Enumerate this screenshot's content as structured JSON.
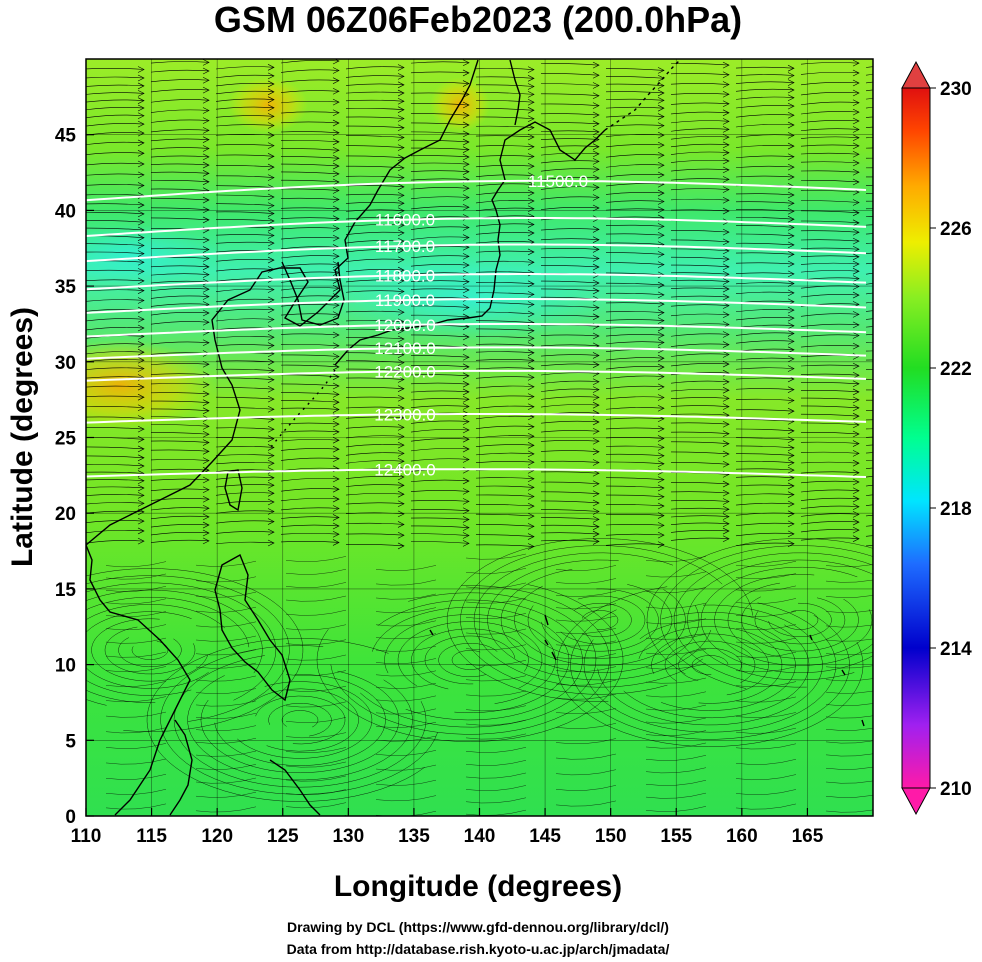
{
  "title": "GSM 06Z06Feb2023 (200.0hPa)",
  "xlabel": "Longitude (degrees)",
  "ylabel": "Latitude  (degrees)",
  "credits": [
    "Drawing by DCL (https://www.gfd-dennou.org/library/dcl/)",
    "Data from http://database.rish.kyoto-u.ac.jp/arch/jmadata/"
  ],
  "map": {
    "lon_range": [
      110,
      170
    ],
    "lat_range": [
      0,
      50
    ],
    "lon_ticks": [
      "110",
      "115",
      "120",
      "125",
      "130",
      "135",
      "140",
      "145",
      "150",
      "155",
      "160",
      "165"
    ],
    "lat_ticks": [
      "0",
      "5",
      "10",
      "15",
      "20",
      "25",
      "30",
      "35",
      "40",
      "45"
    ],
    "grid_step_deg": 5
  },
  "colorbar": {
    "labels": [
      "230",
      "226",
      "222",
      "218",
      "214",
      "210"
    ],
    "range": [
      210,
      230
    ],
    "colors": [
      "#ff1aa8",
      "#a020f0",
      "#0000cc",
      "#1e6cff",
      "#00e5ff",
      "#00ff90",
      "#22dd22",
      "#88ee22",
      "#eeee00",
      "#ffaa00",
      "#ff4400",
      "#e01010"
    ]
  },
  "contours": [
    {
      "label": "11500.0",
      "lat": 41.0
    },
    {
      "label": "11600.0",
      "lat": 38.6
    },
    {
      "label": "11700.0",
      "lat": 36.9
    },
    {
      "label": "11800.0",
      "lat": 35.0
    },
    {
      "label": "11900.0",
      "lat": 33.4
    },
    {
      "label": "12000.0",
      "lat": 31.8
    },
    {
      "label": "12100.0",
      "lat": 30.3
    },
    {
      "label": "12200.0",
      "lat": 28.8
    },
    {
      "label": "12300.0",
      "lat": 26.0
    },
    {
      "label": "12400.0",
      "lat": 22.4
    }
  ]
}
